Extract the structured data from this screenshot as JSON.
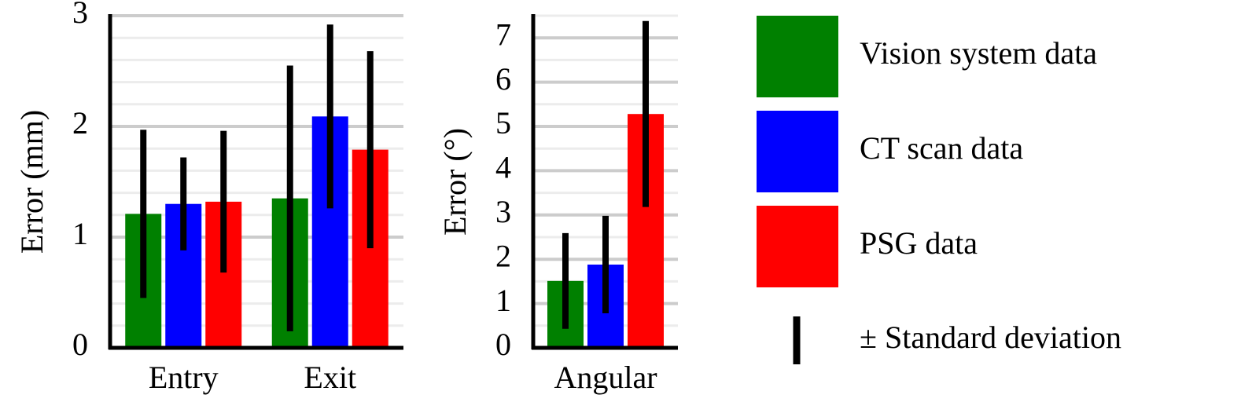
{
  "chart_data": [
    {
      "type": "bar",
      "y_label": "Error (mm)",
      "categories": [
        "Entry",
        "Exit"
      ],
      "series": [
        {
          "name": "Vision system data",
          "color": "#008000",
          "values": [
            1.21,
            1.35
          ],
          "errors": [
            0.76,
            1.2
          ]
        },
        {
          "name": "CT scan data",
          "color": "#0000ff",
          "values": [
            1.3,
            2.09
          ],
          "errors": [
            0.42,
            0.83
          ]
        },
        {
          "name": "PSG data",
          "color": "#ff0000",
          "values": [
            1.32,
            1.79
          ],
          "errors": [
            0.64,
            0.89
          ]
        }
      ],
      "error_legend": "± Standard deviation",
      "ylim": [
        0,
        3
      ],
      "yticks": [
        0,
        1,
        2,
        3
      ],
      "minor_yticks": [
        0.2,
        0.4,
        0.6,
        0.8,
        1.2,
        1.4,
        1.6,
        1.8,
        2.2,
        2.4,
        2.6,
        2.8
      ],
      "grid": true
    },
    {
      "type": "bar",
      "y_label": "Error (°)",
      "categories": [
        "Angular"
      ],
      "series": [
        {
          "color": "#008000",
          "values": [
            1.51
          ],
          "errors": [
            1.08
          ]
        },
        {
          "color": "#0000ff",
          "values": [
            1.88
          ],
          "errors": [
            1.1
          ]
        },
        {
          "color": "#ff0000",
          "values": [
            5.28
          ],
          "errors": [
            2.1
          ]
        }
      ],
      "ylim": [
        0,
        7.5
      ],
      "yticks": [
        0,
        1,
        2,
        3,
        4,
        5,
        6,
        7
      ],
      "minor_yticks": [
        0.5,
        1.5,
        2.5,
        3.5,
        4.5,
        5.5,
        6.5,
        7.5
      ],
      "grid": true
    }
  ]
}
